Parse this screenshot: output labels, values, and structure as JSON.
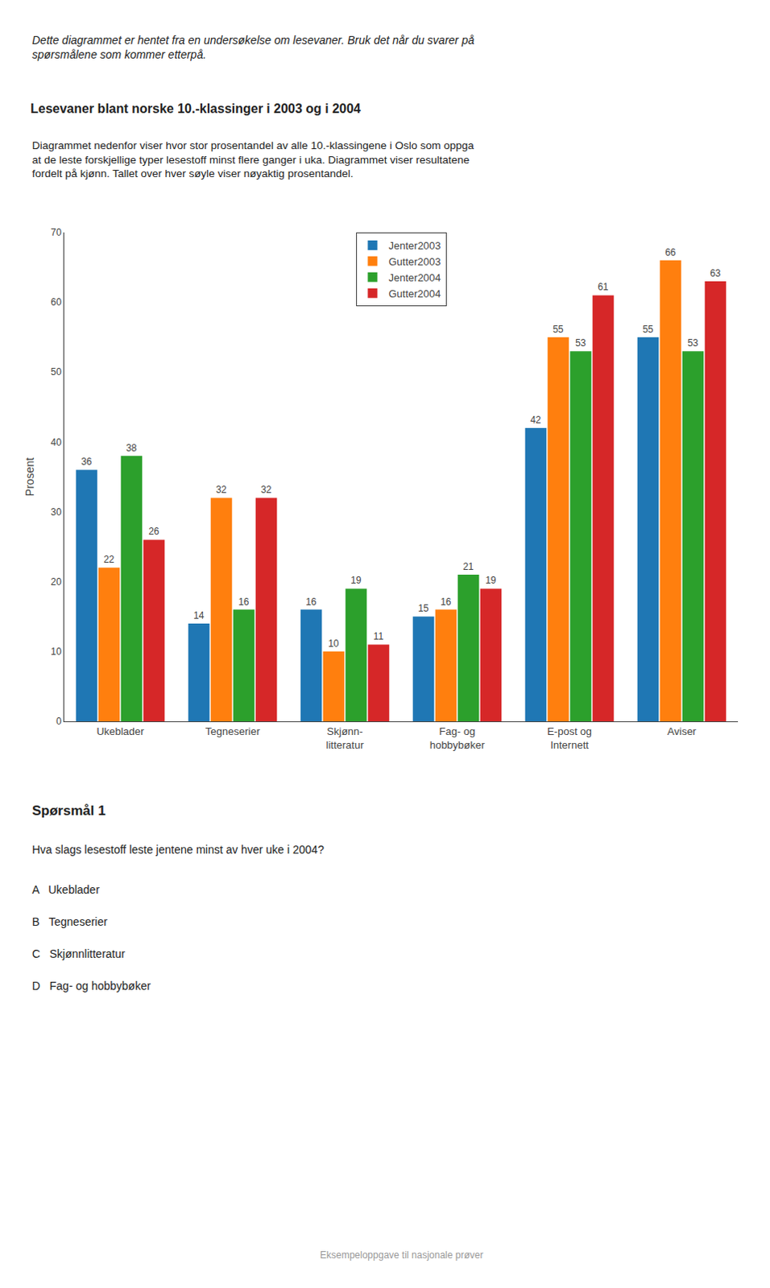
{
  "chart_data": {
    "type": "bar",
    "title": "Lesevaner blant norske 10.-klassinger i 2003 og i 2004",
    "subtitle": "Diagrammet nedenfor viser hvor stor prosentandel av alle 10.-klassingene i Oslo som oppga\nat de leste forskjellige typer lesestoff minst flere ganger i uka. Diagrammet viser resultatene\nfordelt på kjønn. Tallet over hver søyle viser nøyaktig prosentandel.",
    "annotations": [
      "Dette diagrammet er hentet fra en undersøkelse om lesevaner. Bruk det når du svarer på\nspørsmålene som kommer etterpå.",
      "Spørsmål 1",
      "Hva slags lesestoff leste jentene minst av hver uke i 2004?",
      "A   Ukeblader",
      "B   Tegneserier",
      "C   Skjønnlitteratur",
      "D   Fag- og hobbybøker",
      "Eksempeloppgave til nasjonale prøver"
    ],
    "categories": [
      "Ukeblader",
      "Tegneserier",
      "Skjønn-\nlitteratur",
      "Fag- og\nhobbybøker",
      "E-post og\nInternett",
      "Aviser"
    ],
    "series": [
      {
        "name": "Jenter2003",
        "values": [
          36,
          14,
          16,
          15,
          42,
          55
        ]
      },
      {
        "name": "Gutter2003",
        "values": [
          22,
          32,
          10,
          16,
          55,
          66
        ]
      },
      {
        "name": "Jenter2004",
        "values": [
          38,
          16,
          19,
          21,
          53,
          53
        ]
      },
      {
        "name": "Gutter2004",
        "values": [
          26,
          32,
          11,
          19,
          61,
          63
        ]
      }
    ],
    "ylabel": "Prosent",
    "ylim": [
      0,
      70
    ],
    "yticks": [
      0,
      10,
      20,
      30,
      40,
      50,
      60,
      70
    ],
    "grid": false,
    "legend": "top",
    "data_labels": true
  }
}
